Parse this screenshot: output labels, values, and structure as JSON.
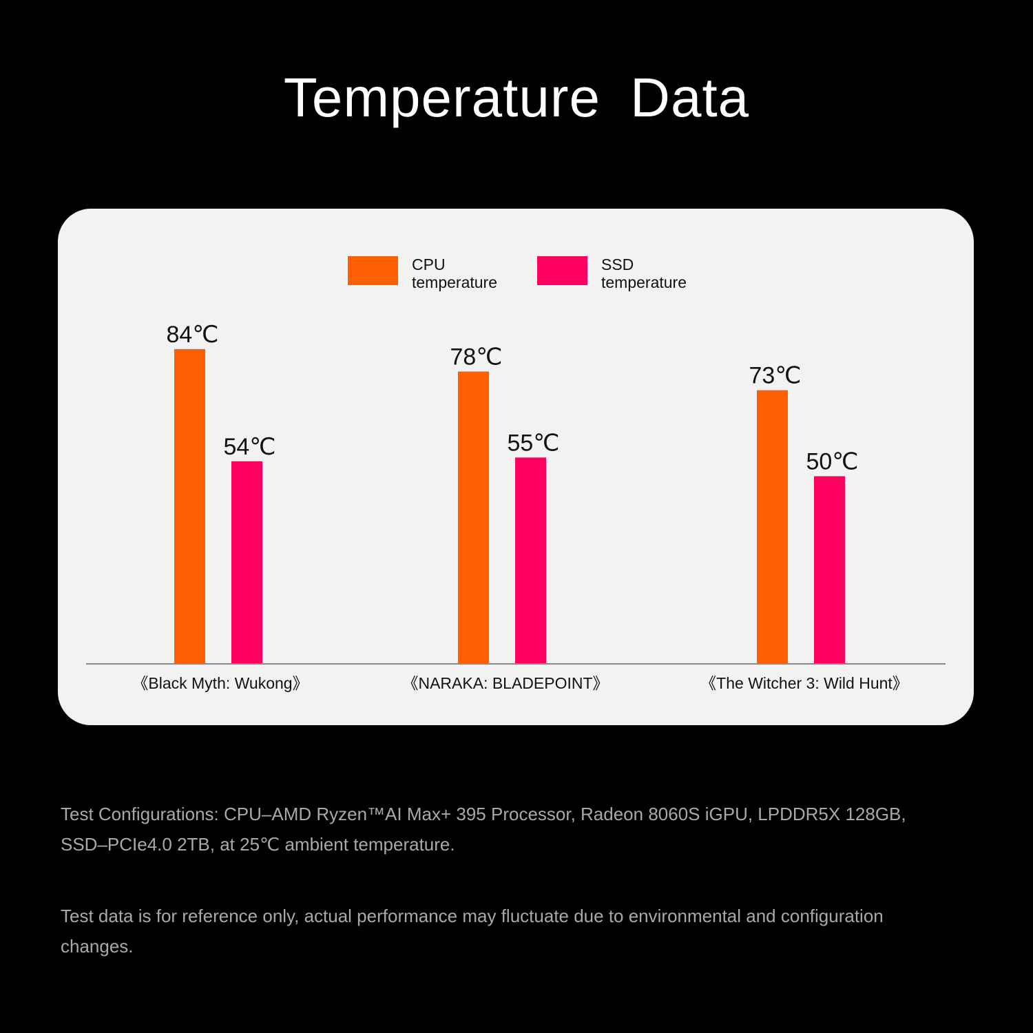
{
  "title": "Temperature  Data",
  "legend": [
    {
      "line1": "CPU",
      "line2": "temperature",
      "color": "#ff5f00"
    },
    {
      "line1": "SSD",
      "line2": "temperature",
      "color": "#ff0060"
    }
  ],
  "chart_data": {
    "type": "bar",
    "title": "Temperature  Data",
    "categories": [
      "《Black Myth: Wukong》",
      "《NARAKA: BLADEPOINT》",
      "《The Witcher 3: Wild Hunt》"
    ],
    "series": [
      {
        "name": "CPU temperature",
        "values": [
          84,
          78,
          73
        ],
        "labels": [
          "84℃",
          "78℃",
          "73℃"
        ],
        "color": "#ff5f00"
      },
      {
        "name": "SSD temperature",
        "values": [
          54,
          55,
          50
        ],
        "labels": [
          "54℃",
          "55℃",
          "50℃"
        ],
        "color": "#ff0060"
      }
    ],
    "ylim": [
      0,
      100
    ],
    "grid": false,
    "legend_position": "top-center"
  },
  "notes": {
    "line1": "Test Configurations: CPU–AMD Ryzen™AI Max+ 395 Processor, Radeon 8060S iGPU, LPDDR5X 128GB, SSD–PCIe4.0 2TB, at 25℃ ambient temperature.",
    "line2": "Test data is for reference only, actual performance may fluctuate due to environmental and configuration changes."
  }
}
